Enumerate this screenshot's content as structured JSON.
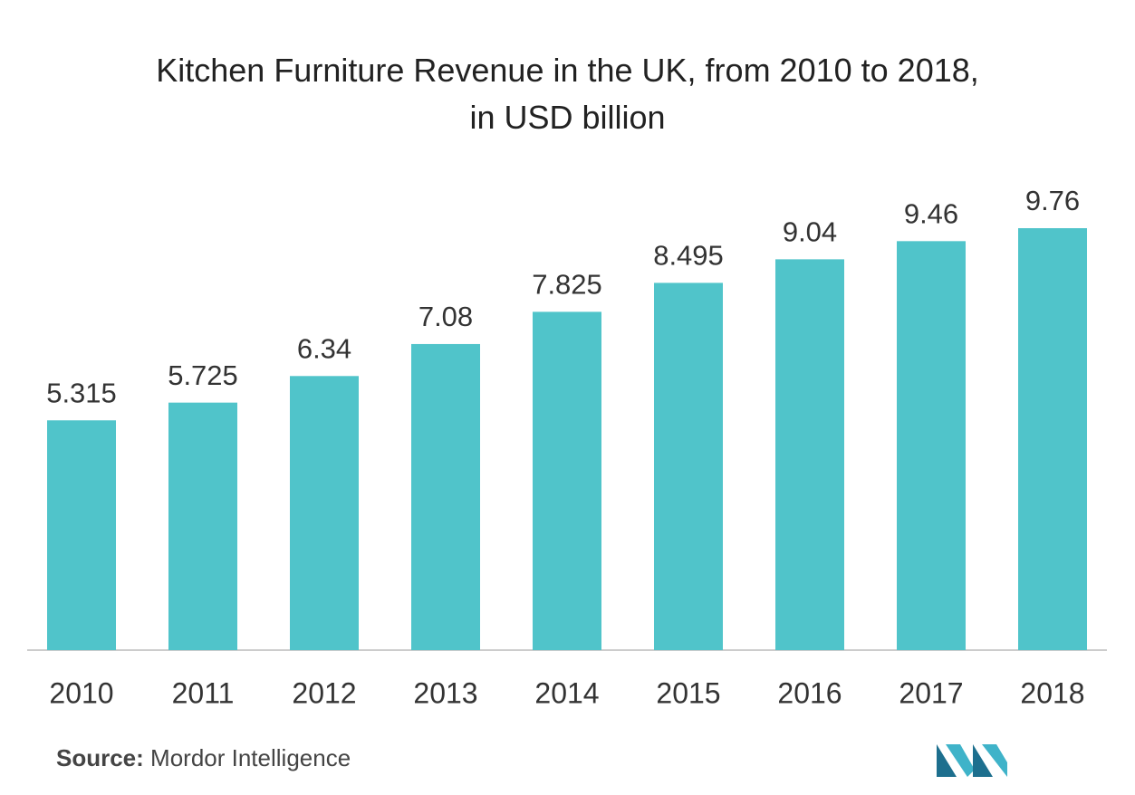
{
  "chart_data": {
    "type": "bar",
    "title": "Kitchen Furniture Revenue in the UK, from 2010 to 2018, in USD billion",
    "categories": [
      "2010",
      "2011",
      "2012",
      "2013",
      "2014",
      "2015",
      "2016",
      "2017",
      "2018"
    ],
    "values": [
      5.315,
      5.725,
      6.34,
      7.08,
      7.825,
      8.495,
      9.04,
      9.46,
      9.76
    ],
    "color": "#50c4ca"
  },
  "source": {
    "label": "Source:",
    "text": "Mordor Intelligence"
  }
}
